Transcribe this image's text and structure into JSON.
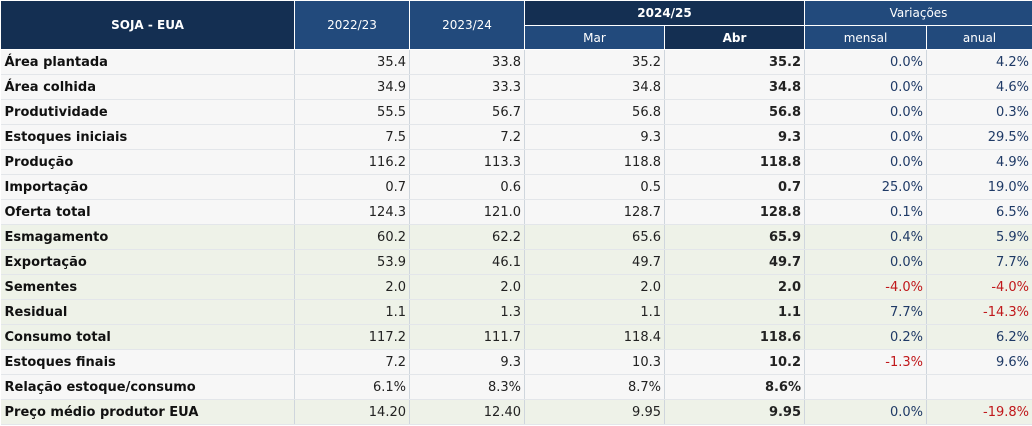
{
  "header": {
    "title": "SOJA - EUA",
    "col_2022": "2022/23",
    "col_2023": "2023/24",
    "col_2024": "2024/25",
    "col_variacoes": "Variações",
    "sub_mar": "Mar",
    "sub_abr": "Abr",
    "sub_mensal": "mensal",
    "sub_anual": "anual"
  },
  "rows": [
    {
      "label": "Área plantada",
      "y2022": "35.4",
      "y2023": "33.8",
      "mar": "35.2",
      "abr": "35.2",
      "mensal": "0.0%",
      "anual": "4.2%"
    },
    {
      "label": "Área colhida",
      "y2022": "34.9",
      "y2023": "33.3",
      "mar": "34.8",
      "abr": "34.8",
      "mensal": "0.0%",
      "anual": "4.6%"
    },
    {
      "label": "Produtividade",
      "y2022": "55.5",
      "y2023": "56.7",
      "mar": "56.8",
      "abr": "56.8",
      "mensal": "0.0%",
      "anual": "0.3%"
    },
    {
      "label": "Estoques iniciais",
      "y2022": "7.5",
      "y2023": "7.2",
      "mar": "9.3",
      "abr": "9.3",
      "mensal": "0.0%",
      "anual": "29.5%"
    },
    {
      "label": "Produção",
      "y2022": "116.2",
      "y2023": "113.3",
      "mar": "118.8",
      "abr": "118.8",
      "mensal": "0.0%",
      "anual": "4.9%"
    },
    {
      "label": "Importação",
      "y2022": "0.7",
      "y2023": "0.6",
      "mar": "0.5",
      "abr": "0.7",
      "mensal": "25.0%",
      "anual": "19.0%"
    },
    {
      "label": "Oferta total",
      "y2022": "124.3",
      "y2023": "121.0",
      "mar": "128.7",
      "abr": "128.8",
      "mensal": "0.1%",
      "anual": "6.5%"
    },
    {
      "label": "Esmagamento",
      "y2022": "60.2",
      "y2023": "62.2",
      "mar": "65.6",
      "abr": "65.9",
      "mensal": "0.4%",
      "anual": "5.9%"
    },
    {
      "label": "Exportação",
      "y2022": "53.9",
      "y2023": "46.1",
      "mar": "49.7",
      "abr": "49.7",
      "mensal": "0.0%",
      "anual": "7.7%"
    },
    {
      "label": "Sementes",
      "y2022": "2.0",
      "y2023": "2.0",
      "mar": "2.0",
      "abr": "2.0",
      "mensal": "-4.0%",
      "anual": "-4.0%"
    },
    {
      "label": "Residual",
      "y2022": "1.1",
      "y2023": "1.3",
      "mar": "1.1",
      "abr": "1.1",
      "mensal": "7.7%",
      "anual": "-14.3%"
    },
    {
      "label": "Consumo total",
      "y2022": "117.2",
      "y2023": "111.7",
      "mar": "118.4",
      "abr": "118.6",
      "mensal": "0.2%",
      "anual": "6.2%"
    },
    {
      "label": "Estoques finais",
      "y2022": "7.2",
      "y2023": "9.3",
      "mar": "10.3",
      "abr": "10.2",
      "mensal": "-1.3%",
      "anual": "9.6%"
    },
    {
      "label": "Relação estoque/consumo",
      "y2022": "6.1%",
      "y2023": "8.3%",
      "mar": "8.7%",
      "abr": "8.6%",
      "mensal": "",
      "anual": ""
    },
    {
      "label": "Preço médio produtor EUA",
      "y2022": "14.20",
      "y2023": "12.40",
      "mar": "9.95",
      "abr": "9.95",
      "mensal": "0.0%",
      "anual": "-19.8%"
    }
  ]
}
